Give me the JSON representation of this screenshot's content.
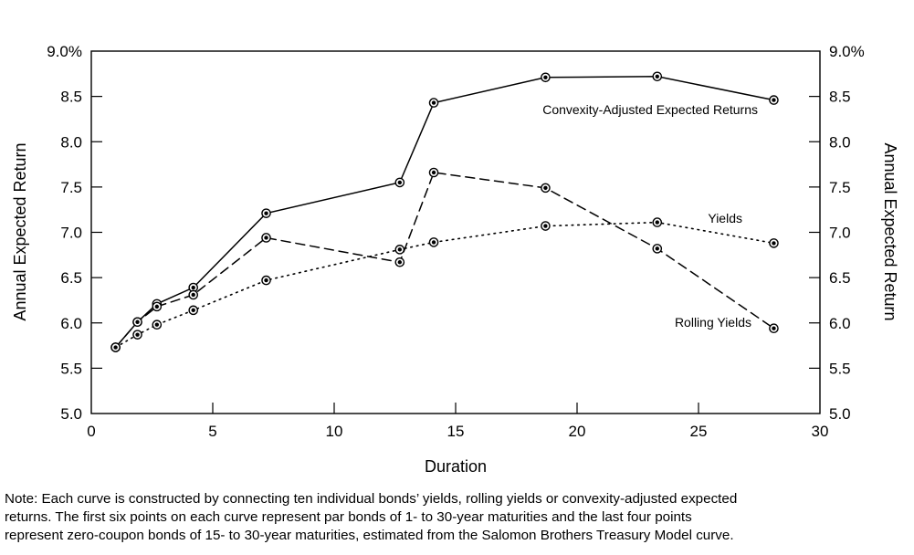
{
  "chart_data": {
    "type": "line",
    "xlabel": "Duration",
    "ylabel_left": "Annual Expected Return",
    "ylabel_right": "Annual Expected Return",
    "xlim": [
      0,
      30
    ],
    "ylim": [
      5.0,
      9.0
    ],
    "x_ticks": [
      0,
      5,
      10,
      15,
      20,
      25,
      30
    ],
    "x_tick_labels": [
      "0",
      "5",
      "10",
      "15",
      "20",
      "25",
      "30"
    ],
    "y_ticks": [
      5.0,
      5.5,
      6.0,
      6.5,
      7.0,
      7.5,
      8.0,
      8.5,
      9.0
    ],
    "y_tick_labels": [
      "5.0",
      "5.5",
      "6.0",
      "6.5",
      "7.0",
      "7.5",
      "8.0",
      "8.5",
      "9.0%"
    ],
    "grid": false,
    "series": [
      {
        "name": "Convexity-Adjusted Expected Returns",
        "line_style": "solid",
        "x": [
          1.0,
          1.9,
          2.7,
          4.2,
          7.2,
          12.7,
          14.1,
          18.7,
          23.3,
          28.1
        ],
        "y": [
          5.73,
          6.01,
          6.21,
          6.39,
          7.21,
          7.55,
          8.43,
          8.71,
          8.72,
          8.46
        ]
      },
      {
        "name": "Rolling Yields",
        "line_style": "dashed",
        "x": [
          1.0,
          1.9,
          2.7,
          4.2,
          7.2,
          12.7,
          14.1,
          18.7,
          23.3,
          28.1
        ],
        "y": [
          5.73,
          6.01,
          6.18,
          6.31,
          6.94,
          6.67,
          7.66,
          7.49,
          6.82,
          5.94
        ]
      },
      {
        "name": "Yields",
        "line_style": "dotted",
        "x": [
          1.0,
          1.9,
          2.7,
          4.2,
          7.2,
          12.7,
          14.1,
          18.7,
          23.3,
          28.1
        ],
        "y": [
          5.73,
          5.87,
          5.98,
          6.14,
          6.47,
          6.81,
          6.89,
          7.07,
          7.11,
          6.88
        ]
      }
    ],
    "note_lines": [
      "Note: Each curve is constructed by connecting ten individual bonds’ yields, rolling yields or convexity-adjusted expected",
      "returns. The first six points on each curve represent par bonds of 1- to 30-year maturities and the last four points",
      "represent zero-coupon bonds of 15- to 30-year maturities, estimated from the Salomon Brothers Treasury Model curve."
    ]
  }
}
